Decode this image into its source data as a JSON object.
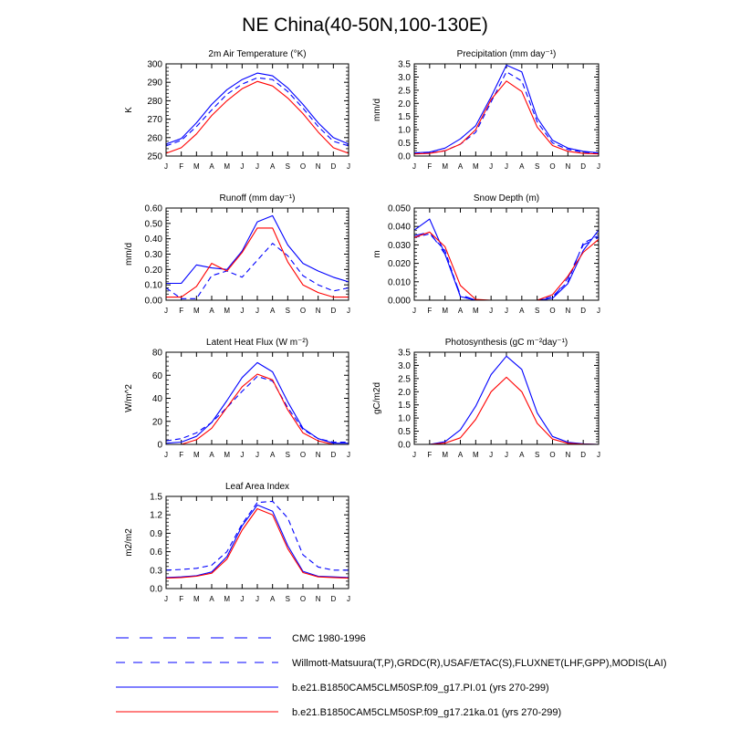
{
  "figure_title": "NE China(40-50N,100-130E)",
  "months": [
    "J",
    "F",
    "M",
    "A",
    "M",
    "J",
    "J",
    "A",
    "S",
    "O",
    "N",
    "D",
    "J"
  ],
  "colors": {
    "blue": "#0000ff",
    "red": "#ff0000",
    "axis": "#000000"
  },
  "legend": [
    {
      "label": "CMC 1980-1996",
      "style": "long-dash",
      "color": "#0000ff"
    },
    {
      "label": "Willmott-Matsuura(T,P),GRDC(R),USAF/ETAC(S),FLUXNET(LHF,GPP),MODIS(LAI)",
      "style": "dash",
      "color": "#0000ff"
    },
    {
      "label": "b.e21.B1850CAM5CLM50SP.f09_g17.PI.01 (yrs 270-299)",
      "style": "solid",
      "color": "#0000ff"
    },
    {
      "label": "b.e21.B1850CAM5CLM50SP.f09_g17.21ka.01 (yrs 270-299)",
      "style": "solid",
      "color": "#ff0000"
    }
  ],
  "chart_data": [
    {
      "type": "line",
      "title": "2m Air Temperature (°K)",
      "ylabel": "K",
      "ylim": [
        250,
        300
      ],
      "yticks": [
        250,
        260,
        270,
        280,
        290,
        300
      ],
      "ytick_labels": [
        "250",
        "260",
        "270",
        "280",
        "290",
        "300"
      ],
      "series": [
        {
          "name": "Willmott-Matsuura",
          "style": "dash",
          "color": "#0000ff",
          "values": [
            255.5,
            258.5,
            266,
            275,
            283.5,
            289,
            292.5,
            291.5,
            285,
            276,
            266,
            258,
            255.5
          ]
        },
        {
          "name": "PI.01",
          "style": "solid",
          "color": "#0000ff",
          "values": [
            256.5,
            259.5,
            268,
            278,
            286,
            291.5,
            295,
            293.5,
            287,
            278,
            268,
            260,
            256.5
          ]
        },
        {
          "name": "21ka.01",
          "style": "solid",
          "color": "#ff0000",
          "values": [
            251.5,
            254.5,
            262,
            272,
            280,
            286.5,
            290.5,
            288,
            281.5,
            273,
            263,
            254.5,
            251.5
          ]
        }
      ]
    },
    {
      "type": "line",
      "title": "Precipitation (mm day⁻¹)",
      "ylabel": "mm/d",
      "ylim": [
        0,
        3.5
      ],
      "yticks": [
        0,
        0.5,
        1,
        1.5,
        2,
        2.5,
        3,
        3.5
      ],
      "ytick_labels": [
        "0.0",
        "0.5",
        "1.0",
        "1.5",
        "2.0",
        "2.5",
        "3.0",
        "3.5"
      ],
      "series": [
        {
          "name": "Willmott-Matsuura",
          "style": "dash",
          "color": "#0000ff",
          "values": [
            0.1,
            0.12,
            0.2,
            0.45,
            0.9,
            2.05,
            3.2,
            2.85,
            1.3,
            0.5,
            0.25,
            0.15,
            0.1
          ]
        },
        {
          "name": "PI.01",
          "style": "solid",
          "color": "#0000ff",
          "values": [
            0.12,
            0.15,
            0.3,
            0.65,
            1.15,
            2.25,
            3.45,
            3.2,
            1.45,
            0.6,
            0.3,
            0.18,
            0.12
          ]
        },
        {
          "name": "21ka.01",
          "style": "solid",
          "color": "#ff0000",
          "values": [
            0.08,
            0.1,
            0.2,
            0.45,
            1.0,
            2.15,
            2.85,
            2.45,
            1.1,
            0.4,
            0.18,
            0.1,
            0.08
          ]
        }
      ]
    },
    {
      "type": "line",
      "title": "Runoff (mm day⁻¹)",
      "ylabel": "mm/d",
      "ylim": [
        0,
        0.6
      ],
      "yticks": [
        0,
        0.1,
        0.2,
        0.3,
        0.4,
        0.5,
        0.6
      ],
      "ytick_labels": [
        "0.00",
        "0.10",
        "0.20",
        "0.30",
        "0.40",
        "0.50",
        "0.60"
      ],
      "series": [
        {
          "name": "GRDC",
          "style": "dash",
          "color": "#0000ff",
          "values": [
            0.08,
            0.01,
            0.01,
            0.16,
            0.19,
            0.15,
            0.26,
            0.37,
            0.29,
            0.16,
            0.1,
            0.06,
            0.08
          ]
        },
        {
          "name": "PI.01",
          "style": "solid",
          "color": "#0000ff",
          "values": [
            0.11,
            0.11,
            0.23,
            0.21,
            0.2,
            0.32,
            0.51,
            0.55,
            0.36,
            0.24,
            0.19,
            0.15,
            0.12
          ]
        },
        {
          "name": "21ka.01",
          "style": "solid",
          "color": "#ff0000",
          "values": [
            0.02,
            0.02,
            0.09,
            0.24,
            0.19,
            0.31,
            0.47,
            0.47,
            0.25,
            0.1,
            0.05,
            0.02,
            0.02
          ]
        }
      ]
    },
    {
      "type": "line",
      "title": "Snow Depth (m)",
      "ylabel": "m",
      "ylim": [
        0,
        0.05
      ],
      "yticks": [
        0,
        0.01,
        0.02,
        0.03,
        0.04,
        0.05
      ],
      "ytick_labels": [
        "0.000",
        "0.010",
        "0.020",
        "0.030",
        "0.040",
        "0.050"
      ],
      "series": [
        {
          "name": "CMC 1980-1996",
          "style": "long-dash",
          "color": "#0000ff",
          "values": [
            0.035,
            0.037,
            0.025,
            0.003,
            0.0,
            0.0,
            0.0,
            0.0,
            0.0,
            0.001,
            0.012,
            0.03,
            0.034
          ]
        },
        {
          "name": "USAF/ETAC",
          "style": "dash",
          "color": "#0000ff",
          "values": [
            0.034,
            0.036,
            0.027,
            0.002,
            0.0,
            0.0,
            0.0,
            0.0,
            0.0,
            0.002,
            0.01,
            0.031,
            0.035
          ]
        },
        {
          "name": "PI.01",
          "style": "solid",
          "color": "#0000ff",
          "values": [
            0.038,
            0.044,
            0.025,
            0.002,
            0.0,
            0.0,
            0.0,
            0.0,
            0.0,
            0.001,
            0.009,
            0.027,
            0.038
          ]
        },
        {
          "name": "21ka.01",
          "style": "solid",
          "color": "#ff0000",
          "values": [
            0.034,
            0.037,
            0.029,
            0.008,
            0.0005,
            0.0,
            0.0,
            0.0,
            0.0,
            0.003,
            0.013,
            0.026,
            0.033
          ]
        }
      ]
    },
    {
      "type": "line",
      "title": "Latent Heat Flux (W m⁻²)",
      "ylabel": "W/m^2",
      "ylim": [
        0,
        80
      ],
      "yticks": [
        0,
        20,
        40,
        60,
        80
      ],
      "ytick_labels": [
        "0",
        "20",
        "40",
        "60",
        "80"
      ],
      "series": [
        {
          "name": "FLUXNET",
          "style": "dash",
          "color": "#0000ff",
          "values": [
            3,
            5,
            10,
            19,
            32,
            46,
            59,
            55,
            32,
            13,
            5,
            2,
            2
          ]
        },
        {
          "name": "PI.01",
          "style": "solid",
          "color": "#0000ff",
          "values": [
            1,
            2,
            7,
            19,
            38,
            58,
            71,
            63,
            37,
            14,
            5,
            1,
            1
          ]
        },
        {
          "name": "21ka.01",
          "style": "solid",
          "color": "#ff0000",
          "values": [
            0,
            0,
            4,
            14,
            32,
            50,
            61,
            56,
            30,
            10,
            3,
            0,
            0
          ]
        }
      ]
    },
    {
      "type": "line",
      "title": "Photosynthesis (gC m⁻²day⁻¹)",
      "ylabel": "gC/m2d",
      "ylim": [
        0,
        3.5
      ],
      "yticks": [
        0,
        0.5,
        1,
        1.5,
        2,
        2.5,
        3,
        3.5
      ],
      "ytick_labels": [
        "0.0",
        "0.5",
        "1.0",
        "1.5",
        "2.0",
        "2.5",
        "3.0",
        "3.5"
      ],
      "series": [
        {
          "name": "PI.01",
          "style": "solid",
          "color": "#0000ff",
          "values": [
            0.0,
            0.0,
            0.1,
            0.55,
            1.45,
            2.65,
            3.35,
            2.85,
            1.2,
            0.3,
            0.08,
            0.02,
            0.0
          ]
        },
        {
          "name": "21ka.01",
          "style": "solid",
          "color": "#ff0000",
          "values": [
            0.0,
            0.0,
            0.05,
            0.25,
            0.95,
            2.0,
            2.55,
            2.0,
            0.8,
            0.2,
            0.04,
            0.01,
            0.0
          ]
        }
      ]
    },
    {
      "type": "line",
      "title": "Leaf Area Index",
      "ylabel": "m2/m2",
      "ylim": [
        0,
        1.5
      ],
      "yticks": [
        0,
        0.3,
        0.6,
        0.9,
        1.2,
        1.5
      ],
      "ytick_labels": [
        "0.0",
        "0.3",
        "0.6",
        "0.9",
        "1.2",
        "1.5"
      ],
      "series": [
        {
          "name": "MODIS",
          "style": "dash",
          "color": "#0000ff",
          "values": [
            0.3,
            0.31,
            0.33,
            0.38,
            0.6,
            1.05,
            1.4,
            1.42,
            1.15,
            0.55,
            0.35,
            0.3,
            0.3
          ]
        },
        {
          "name": "PI.01",
          "style": "solid",
          "color": "#0000ff",
          "values": [
            0.18,
            0.19,
            0.21,
            0.27,
            0.52,
            1.02,
            1.36,
            1.26,
            0.7,
            0.28,
            0.2,
            0.19,
            0.18
          ]
        },
        {
          "name": "21ka.01",
          "style": "solid",
          "color": "#ff0000",
          "values": [
            0.17,
            0.18,
            0.2,
            0.25,
            0.48,
            0.95,
            1.3,
            1.2,
            0.65,
            0.26,
            0.19,
            0.18,
            0.17
          ]
        }
      ]
    }
  ]
}
